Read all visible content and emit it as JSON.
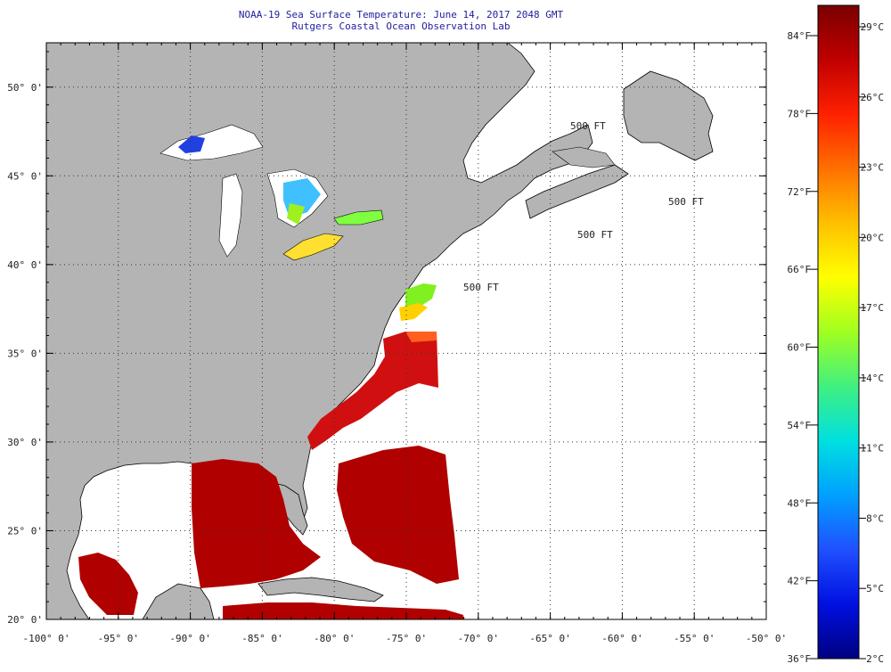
{
  "header": {
    "title": "NOAA-19 Sea Surface Temperature:  June 14, 2017 2048 GMT",
    "subtitle": "Rutgers Coastal Ocean Observation Lab"
  },
  "map": {
    "lon_labels": [
      "-100° 0'",
      "-95° 0'",
      "-90° 0'",
      "-85° 0'",
      "-80° 0'",
      "-75° 0'",
      "-70° 0'",
      "-65° 0'",
      "-60° 0'",
      "-55° 0'",
      "-50° 0'"
    ],
    "lon_values": [
      -100,
      -95,
      -90,
      -85,
      -80,
      -75,
      -70,
      -65,
      -60,
      -55,
      -50
    ],
    "lat_labels": [
      "20° 0'",
      "25° 0'",
      "30° 0'",
      "35° 0'",
      "40° 0'",
      "45° 0'",
      "50° 0'"
    ],
    "lat_values": [
      20,
      25,
      30,
      35,
      40,
      45,
      50
    ],
    "lon_range": [
      -100,
      -50
    ],
    "lat_range": [
      20,
      52.5
    ],
    "isobath_labels": [
      "500 FT",
      "500 FT",
      "500 FT",
      "500 FT"
    ],
    "colors": {
      "land": "#b4b4b4",
      "water_nodata": "#ffffff",
      "grid": "#555555"
    }
  },
  "colorbar": {
    "f_labels": [
      "84°F",
      "78°F",
      "72°F",
      "66°F",
      "60°F",
      "54°F",
      "48°F",
      "42°F",
      "36°F"
    ],
    "c_labels": [
      "29°C",
      "26°C",
      "23°C",
      "20°C",
      "17°C",
      "14°C",
      "11°C",
      "8°C",
      "5°C",
      "2°C"
    ],
    "gradient": [
      "#7a0000",
      "#c00000",
      "#ff2000",
      "#ff7000",
      "#ffc000",
      "#ffff00",
      "#a0ff20",
      "#40f080",
      "#00e0e0",
      "#00a0ff",
      "#2050ff",
      "#0010e0",
      "#000080"
    ]
  }
}
